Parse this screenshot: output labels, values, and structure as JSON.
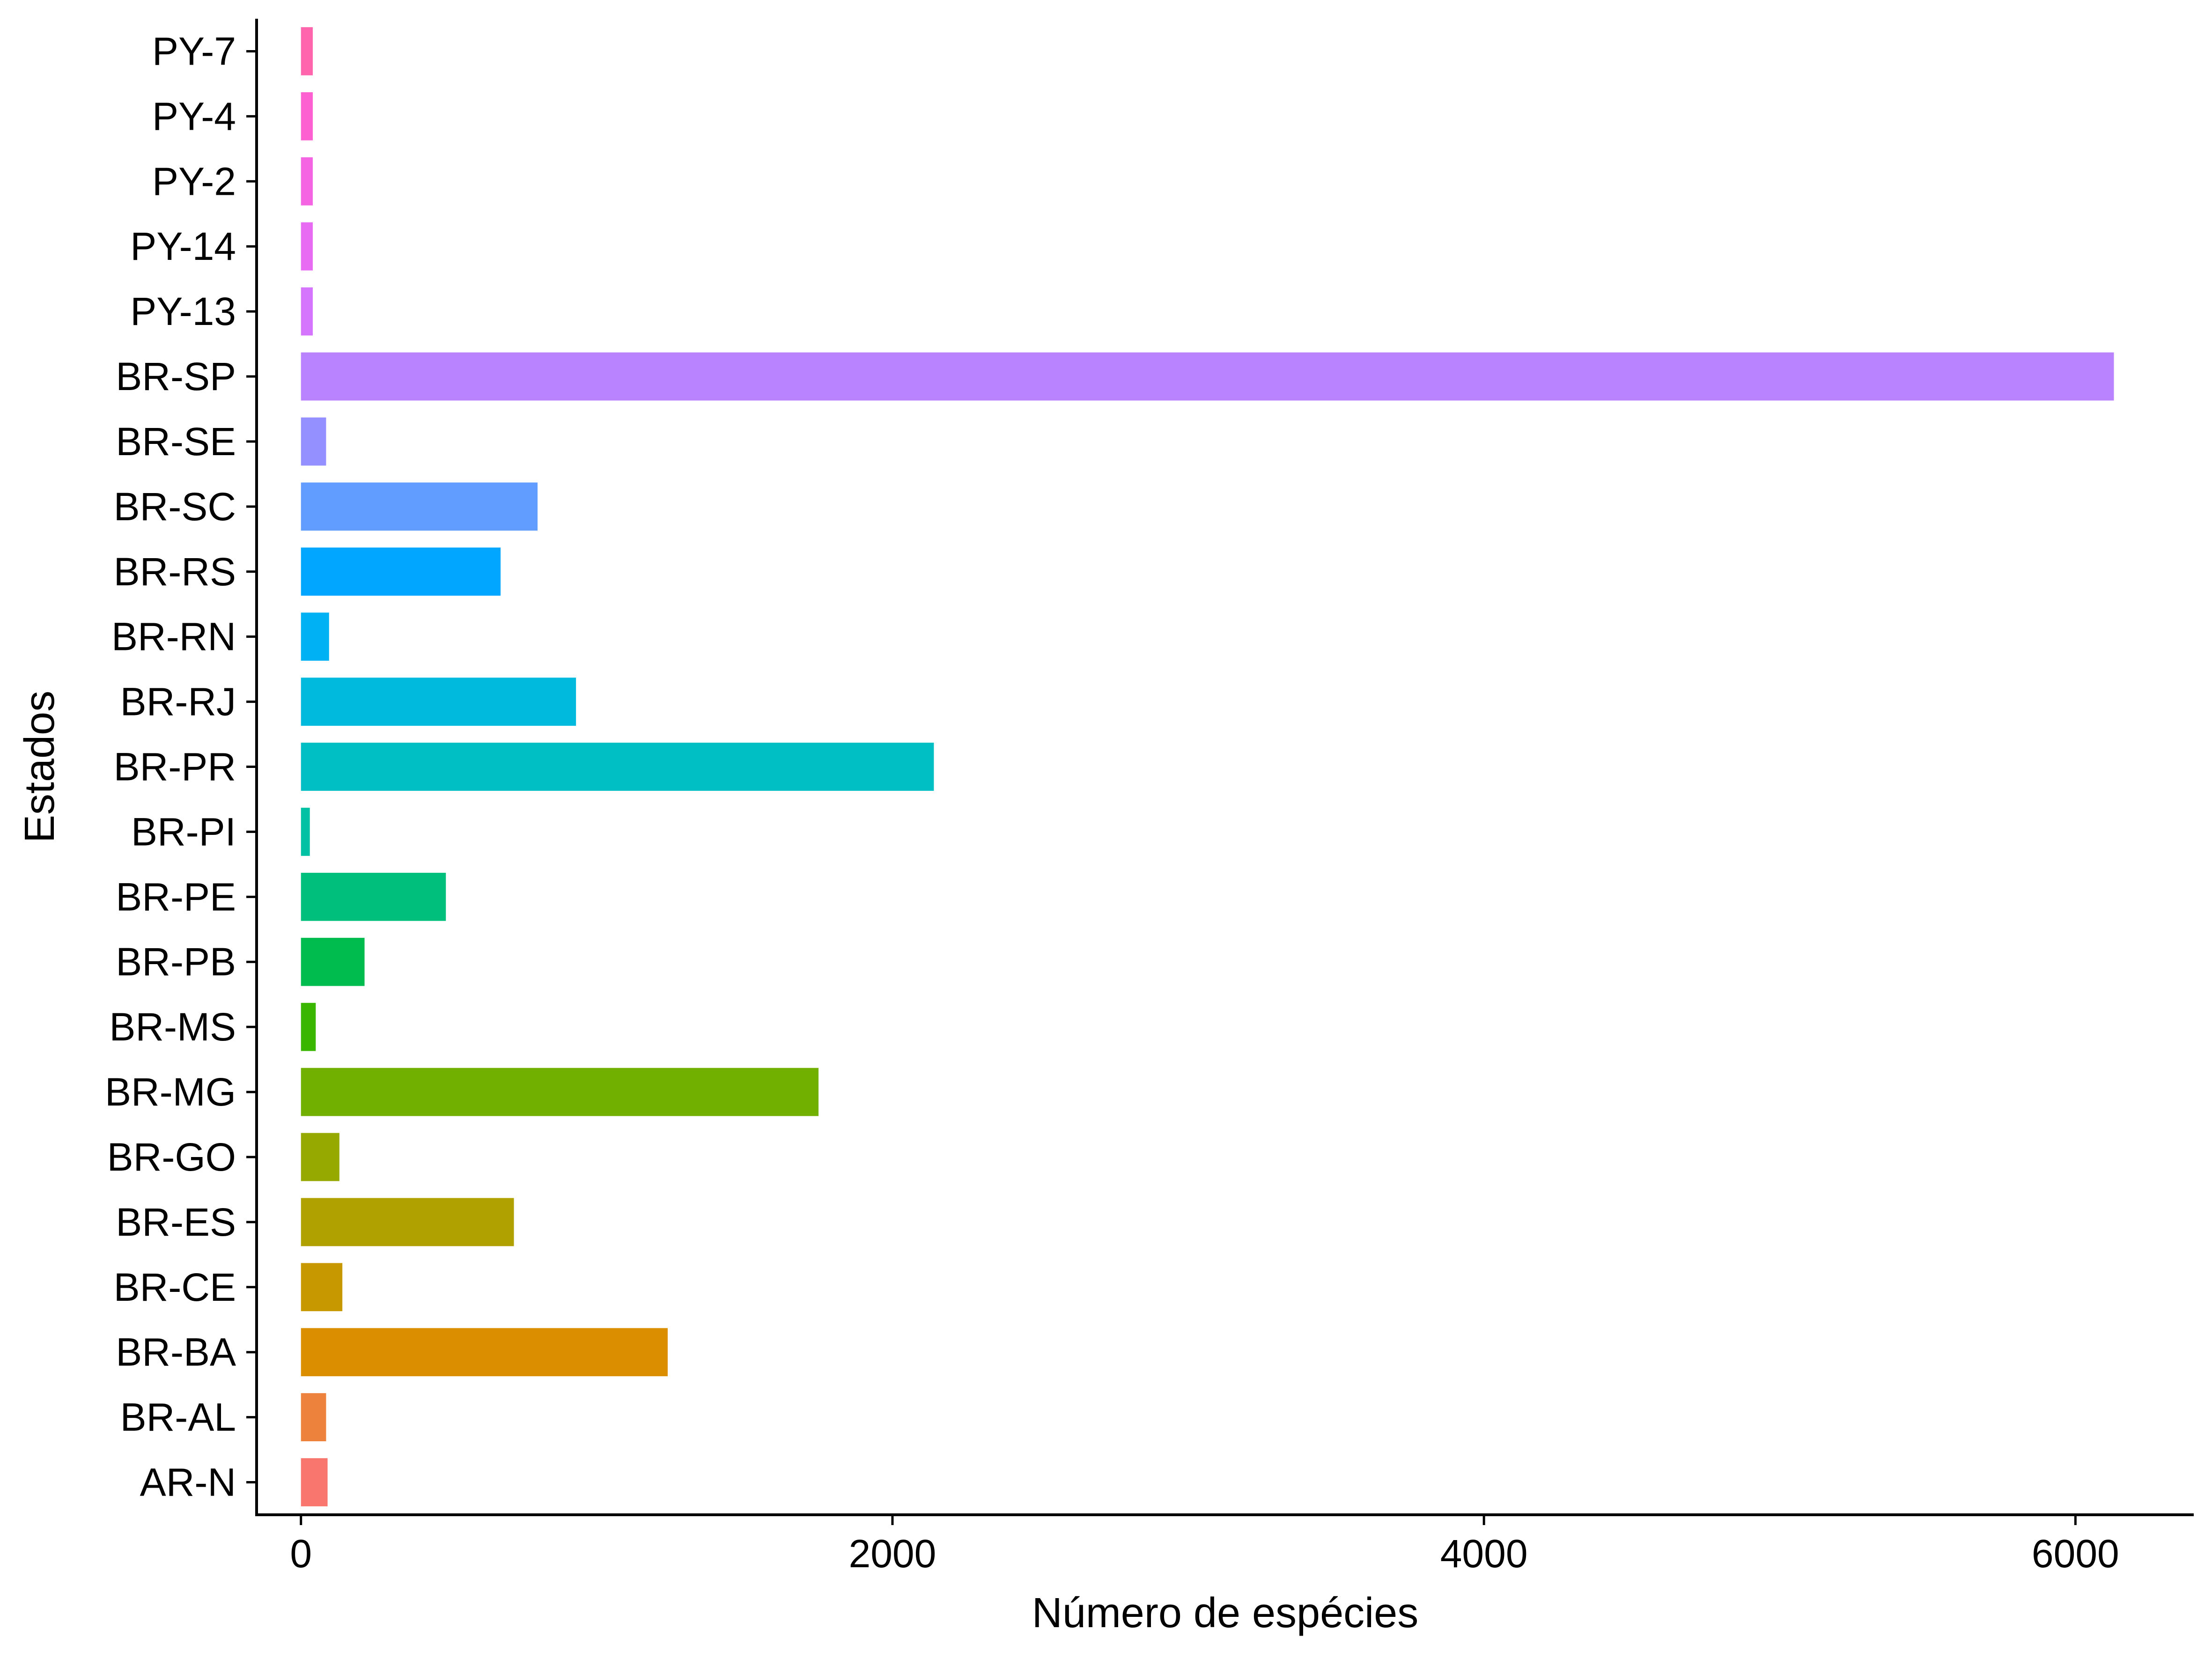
{
  "chart_data": {
    "type": "bar",
    "orientation": "horizontal",
    "xlabel": "Número de espécies",
    "ylabel": "Estados",
    "xlim": [
      -150,
      6400
    ],
    "xticks": [
      0,
      2000,
      4000,
      6000
    ],
    "grid": false,
    "legend": "none",
    "categories": [
      "AR-N",
      "BR-AL",
      "BR-BA",
      "BR-CE",
      "BR-ES",
      "BR-GO",
      "BR-MG",
      "BR-MS",
      "BR-PB",
      "BR-PE",
      "BR-PI",
      "BR-PR",
      "BR-RJ",
      "BR-RN",
      "BR-RS",
      "BR-SC",
      "BR-SE",
      "BR-SP",
      "PY-13",
      "PY-14",
      "PY-2",
      "PY-4",
      "PY-7"
    ],
    "values": [
      90,
      85,
      1240,
      140,
      720,
      130,
      1750,
      50,
      215,
      490,
      30,
      2140,
      930,
      95,
      675,
      800,
      85,
      6130,
      40,
      40,
      40,
      40,
      40
    ],
    "colors": [
      "#F8766D",
      "#EC823C",
      "#DB8E00",
      "#C79800",
      "#B0A100",
      "#95A900",
      "#72B000",
      "#39B600",
      "#00BB4E",
      "#00BF7D",
      "#00C1A3",
      "#00BFC4",
      "#00BADE",
      "#00B2F3",
      "#00A6FF",
      "#619CFF",
      "#9590FF",
      "#B983FF",
      "#D575FE",
      "#E76BF3",
      "#F564E3",
      "#FD61D1",
      "#FF65AC"
    ]
  }
}
